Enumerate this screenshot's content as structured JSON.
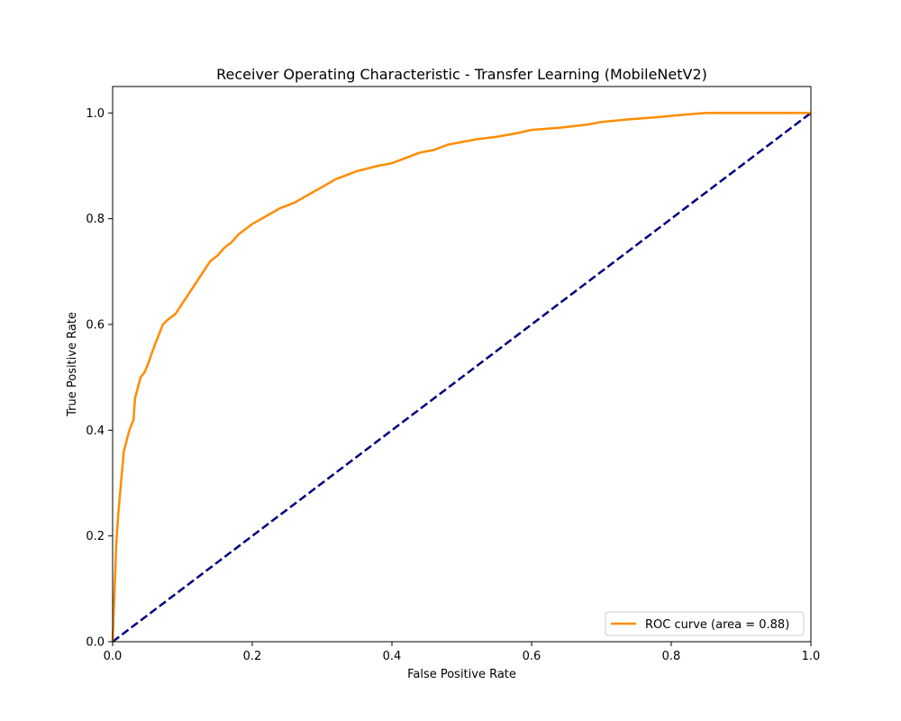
{
  "chart_data": {
    "type": "line",
    "title": "Receiver Operating Characteristic - Transfer Learning (MobileNetV2)",
    "xlabel": "False Positive Rate",
    "ylabel": "True Positive Rate",
    "xlim": [
      0.0,
      1.0
    ],
    "ylim": [
      0.0,
      1.05
    ],
    "grid": false,
    "legend_position": "lower-right",
    "x_ticks": [
      0.0,
      0.2,
      0.4,
      0.6,
      0.8,
      1.0
    ],
    "x_tick_labels": [
      "0.0",
      "0.2",
      "0.4",
      "0.6",
      "0.8",
      "1.0"
    ],
    "y_ticks": [
      0.0,
      0.2,
      0.4,
      0.6,
      0.8,
      1.0
    ],
    "y_tick_labels": [
      "0.0",
      "0.2",
      "0.4",
      "0.6",
      "0.8",
      "1.0"
    ],
    "series": [
      {
        "name": "ROC curve (area = 0.88)",
        "color": "#ff8c00",
        "style": "solid",
        "x": [
          0.0,
          0.002,
          0.004,
          0.005,
          0.006,
          0.008,
          0.01,
          0.012,
          0.014,
          0.016,
          0.02,
          0.024,
          0.03,
          0.032,
          0.036,
          0.04,
          0.046,
          0.052,
          0.06,
          0.066,
          0.072,
          0.08,
          0.09,
          0.1,
          0.11,
          0.12,
          0.13,
          0.14,
          0.15,
          0.16,
          0.17,
          0.18,
          0.2,
          0.22,
          0.24,
          0.26,
          0.28,
          0.3,
          0.32,
          0.35,
          0.38,
          0.4,
          0.42,
          0.44,
          0.46,
          0.48,
          0.5,
          0.52,
          0.55,
          0.58,
          0.6,
          0.64,
          0.68,
          0.7,
          0.74,
          0.78,
          0.82,
          0.85,
          0.9,
          0.95,
          1.0
        ],
        "y": [
          0.0,
          0.07,
          0.14,
          0.18,
          0.2,
          0.24,
          0.27,
          0.3,
          0.33,
          0.36,
          0.38,
          0.4,
          0.42,
          0.46,
          0.48,
          0.5,
          0.51,
          0.53,
          0.56,
          0.58,
          0.6,
          0.61,
          0.62,
          0.64,
          0.66,
          0.68,
          0.7,
          0.72,
          0.73,
          0.745,
          0.755,
          0.77,
          0.79,
          0.805,
          0.82,
          0.83,
          0.845,
          0.86,
          0.875,
          0.89,
          0.9,
          0.905,
          0.915,
          0.925,
          0.93,
          0.94,
          0.945,
          0.95,
          0.955,
          0.962,
          0.968,
          0.972,
          0.978,
          0.983,
          0.988,
          0.992,
          0.997,
          1.0,
          1.0,
          1.0,
          1.0
        ]
      },
      {
        "name": "",
        "color": "#000080",
        "style": "dashed",
        "x": [
          0.0,
          1.0
        ],
        "y": [
          0.0,
          1.0
        ]
      }
    ]
  }
}
